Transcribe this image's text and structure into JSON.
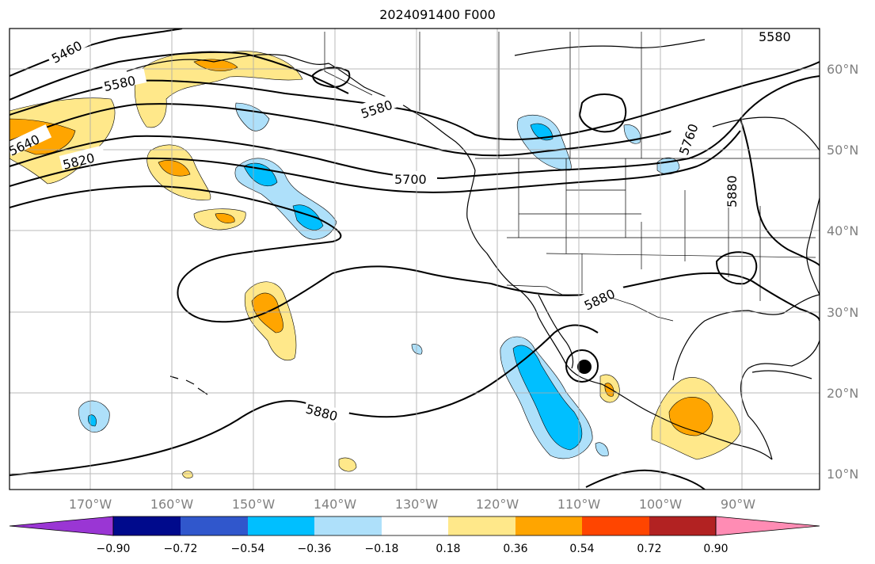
{
  "title": "2024091400 F000",
  "longitude_labels": [
    "170°W",
    "160°W",
    "150°W",
    "140°W",
    "130°W",
    "120°W",
    "110°W",
    "100°W",
    "90°W"
  ],
  "latitude_labels": [
    "60°N",
    "50°N",
    "40°N",
    "30°N",
    "20°N",
    "10°N"
  ],
  "contour_labels": [
    "5460",
    "5580",
    "5640",
    "5820",
    "5580",
    "5700",
    "5880",
    "5880",
    "5580",
    "5880",
    "5760"
  ],
  "colorbar": {
    "tick_labels": [
      "−0.90",
      "−0.72",
      "−0.54",
      "−0.36",
      "−0.18",
      "0.18",
      "0.36",
      "0.54",
      "0.72",
      "0.90"
    ],
    "colors": [
      "#9a36d4",
      "#000a8c",
      "#3057cc",
      "#00bfff",
      "#aee0fa",
      "#ffffff",
      "#ffe88a",
      "#ffa500",
      "#ff4500",
      "#b22222",
      "#ff8cb4"
    ]
  },
  "colors": {
    "land": "#ffffff",
    "ocean": "#ffffff",
    "gridline": "#a9a9a9",
    "contour": "#000000"
  }
}
